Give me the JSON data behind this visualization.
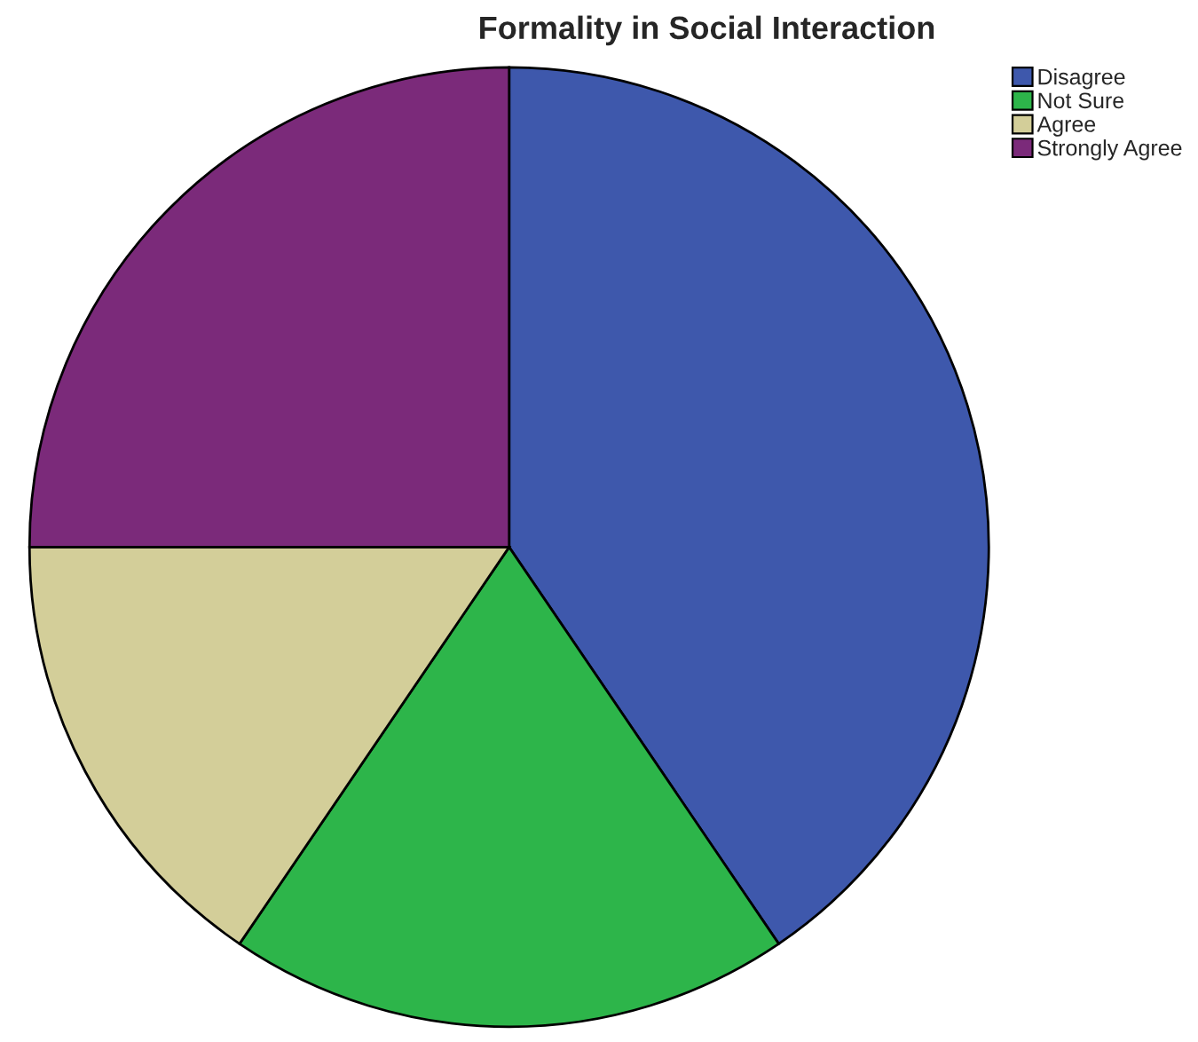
{
  "chart_data": {
    "type": "pie",
    "title": "Formality in Social Interaction",
    "categories": [
      "Disagree",
      "Not Sure",
      "Agree",
      "Strongly Agree"
    ],
    "values": [
      40.5,
      19,
      15.5,
      25
    ],
    "colors": [
      "#3e58ac",
      "#2db54a",
      "#d3ce99",
      "#7b2a7a"
    ],
    "legend": "top right"
  }
}
